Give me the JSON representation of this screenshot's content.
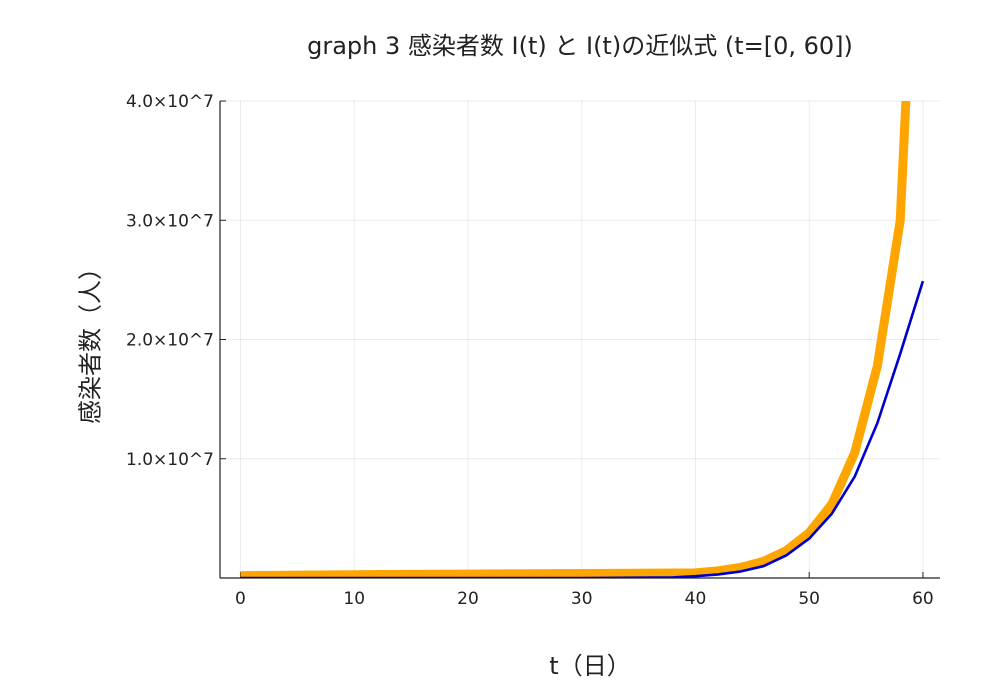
{
  "chart_data": {
    "type": "line",
    "title": "graph 3 感染者数 I(t) と I(t)の近似式 (t=[0, 60])",
    "xlabel": "t（日）",
    "ylabel": "感染者数（人）",
    "xlim": [
      -1.8,
      61.5
    ],
    "ylim": [
      0,
      40000000
    ],
    "xticks": [
      0,
      10,
      20,
      30,
      40,
      50,
      60
    ],
    "xtick_labels": [
      "0",
      "10",
      "20",
      "30",
      "40",
      "50",
      "60"
    ],
    "yticks": [
      10000000,
      20000000,
      30000000,
      40000000
    ],
    "ytick_labels": [
      "1.0×10^7",
      "2.0×10^7",
      "3.0×10^7",
      "4.0×10^7"
    ],
    "grid": true,
    "legend": "none",
    "series": [
      {
        "color": "#FFA500",
        "x": [
          0,
          10,
          20,
          30,
          40,
          42,
          44,
          46,
          48,
          50,
          52,
          54,
          56,
          58,
          58.5
        ],
        "y": [
          200000,
          280000,
          330000,
          380000,
          430000,
          600000,
          900000,
          1400000,
          2300000,
          3800000,
          6200000,
          10500000,
          17800000,
          30000000,
          40000000
        ]
      },
      {
        "color": "#0000CC",
        "x": [
          0,
          10,
          20,
          30,
          38,
          40,
          42,
          44,
          46,
          48,
          50,
          52,
          54,
          56,
          58,
          60
        ],
        "y": [
          0,
          0,
          0,
          0,
          50000,
          150000,
          300000,
          550000,
          1000000,
          1900000,
          3300000,
          5400000,
          8500000,
          13000000,
          18800000,
          24900000
        ]
      }
    ]
  }
}
